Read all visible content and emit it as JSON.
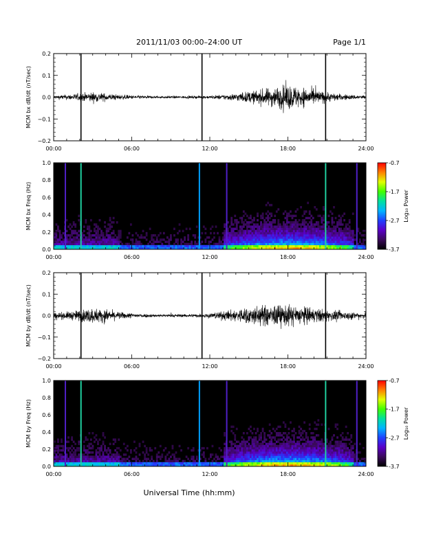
{
  "header": {
    "title": "2011/11/03  00:00–24:00 UT",
    "page": "Page 1/1"
  },
  "footer": {
    "xlabel": "Universal Time (hh:mm)"
  },
  "colors": {
    "trace": "#000000",
    "spec_bg": "#000000",
    "colormap": [
      "#000000",
      "#3a0a5a",
      "#5a00c8",
      "#2040ff",
      "#00b4ff",
      "#00e0a0",
      "#40ff00",
      "#e0ff00",
      "#ff8000",
      "#ff0000"
    ]
  },
  "chart_data": [
    {
      "type": "line",
      "ylabel": "MCM bx dB/dt (nT/sec)",
      "xlim": [
        0,
        24
      ],
      "ylim": [
        -0.2,
        0.2
      ],
      "yticks": [
        "0.2",
        "0.1",
        "0.0",
        "−0.1",
        "−0.2"
      ],
      "xticks": [
        "00:00",
        "06:00",
        "12:00",
        "18:00",
        "24:00"
      ],
      "spikes_hours": [
        2.1,
        11.4,
        20.9
      ],
      "series": [
        {
          "x": [
            0,
            1,
            2,
            3,
            4,
            5,
            6,
            7,
            8,
            9,
            10,
            11,
            12,
            13,
            14,
            15,
            16,
            17,
            18,
            19,
            20,
            21,
            22,
            23,
            24
          ],
          "envelope": [
            0.015,
            0.02,
            0.03,
            0.04,
            0.03,
            0.02,
            0.015,
            0.012,
            0.01,
            0.01,
            0.01,
            0.01,
            0.012,
            0.02,
            0.03,
            0.045,
            0.06,
            0.08,
            0.1,
            0.08,
            0.06,
            0.04,
            0.025,
            0.018,
            0.015
          ]
        }
      ]
    },
    {
      "type": "heatmap",
      "ylabel": "MCM bx Freq (Hz)",
      "xlim": [
        0,
        24
      ],
      "ylim": [
        0,
        1.0
      ],
      "yticks": [
        "1.0",
        "0.8",
        "0.6",
        "0.4",
        "0.2",
        "0.0"
      ],
      "xticks": [
        "00:00",
        "06:00",
        "12:00",
        "18:00",
        "24:00"
      ],
      "colorbar": {
        "label": "Log₁₀ Power",
        "ticks": [
          "-0.7",
          "-1.7",
          "-2.7",
          "-3.7"
        ],
        "range": [
          -3.7,
          -0.7
        ]
      },
      "vertical_lines_hours": [
        0.9,
        2.1,
        11.2,
        13.3,
        20.9,
        23.3
      ]
    },
    {
      "type": "line",
      "ylabel": "MCM by dB/dt (nT/sec)",
      "xlim": [
        0,
        24
      ],
      "ylim": [
        -0.2,
        0.2
      ],
      "yticks": [
        "0.2",
        "0.1",
        "0.0",
        "−0.1",
        "−0.2"
      ],
      "xticks": [
        "00:00",
        "06:00",
        "12:00",
        "18:00",
        "24:00"
      ],
      "spikes_hours": [
        2.1,
        11.4,
        20.9
      ],
      "series": [
        {
          "x": [
            0,
            1,
            2,
            3,
            4,
            5,
            6,
            7,
            8,
            9,
            10,
            11,
            12,
            13,
            14,
            15,
            16,
            17,
            18,
            19,
            20,
            21,
            22,
            23,
            24
          ],
          "envelope": [
            0.025,
            0.03,
            0.045,
            0.06,
            0.05,
            0.03,
            0.02,
            0.015,
            0.012,
            0.012,
            0.012,
            0.015,
            0.02,
            0.035,
            0.05,
            0.07,
            0.08,
            0.085,
            0.085,
            0.075,
            0.06,
            0.045,
            0.035,
            0.03,
            0.025
          ]
        }
      ]
    },
    {
      "type": "heatmap",
      "ylabel": "MCM by Freq (Hz)",
      "xlim": [
        0,
        24
      ],
      "ylim": [
        0,
        1.0
      ],
      "yticks": [
        "1.0",
        "0.8",
        "0.6",
        "0.4",
        "0.2",
        "0.0"
      ],
      "xticks": [
        "00:00",
        "06:00",
        "12:00",
        "18:00",
        "24:00"
      ],
      "colorbar": {
        "label": "Log₁₀ Power",
        "ticks": [
          "-0.7",
          "-1.7",
          "-2.7",
          "-3.7"
        ],
        "range": [
          -3.7,
          -0.7
        ]
      },
      "vertical_lines_hours": [
        0.9,
        2.1,
        11.2,
        13.3,
        20.9,
        23.3
      ]
    }
  ]
}
